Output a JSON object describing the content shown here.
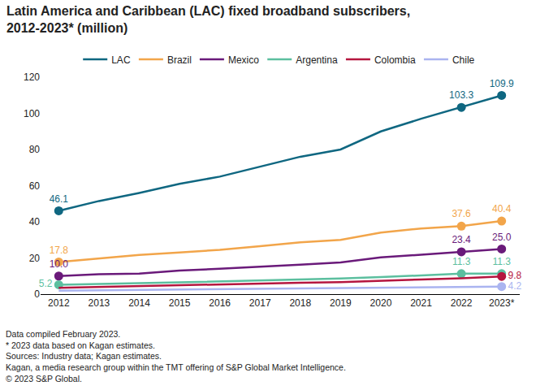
{
  "chart_data": {
    "type": "line",
    "title": "Latin America and Caribbean (LAC) fixed broadband subscribers, 2012-2023* (million)",
    "categories": [
      "2012",
      "2013",
      "2014",
      "2015",
      "2016",
      "2017",
      "2018",
      "2019",
      "2020",
      "2021",
      "2022",
      "2023*"
    ],
    "series": [
      {
        "name": "LAC",
        "color": "#0f6781",
        "values": [
          46.1,
          51.5,
          56,
          61,
          65,
          70.5,
          76,
          80,
          90,
          97,
          103.3,
          109.9
        ],
        "value_labels": [
          "46.1",
          null,
          null,
          null,
          null,
          null,
          null,
          null,
          null,
          null,
          "103.3",
          "109.9"
        ]
      },
      {
        "name": "Brazil",
        "color": "#f2a54a",
        "values": [
          17.8,
          19.8,
          21.7,
          23,
          24.5,
          26.5,
          28.6,
          30,
          34,
          36.3,
          37.6,
          40.4
        ],
        "value_labels": [
          "17.8",
          null,
          null,
          null,
          null,
          null,
          null,
          null,
          null,
          null,
          "37.6",
          "40.4"
        ]
      },
      {
        "name": "Mexico",
        "color": "#6a1a7a",
        "values": [
          10.0,
          11,
          11.4,
          13,
          14,
          15,
          16.3,
          17.5,
          20.3,
          21.8,
          23.4,
          25.0
        ],
        "value_labels": [
          "10.0",
          null,
          null,
          null,
          null,
          null,
          null,
          null,
          null,
          null,
          "23.4",
          "25.0"
        ]
      },
      {
        "name": "Argentina",
        "color": "#5cbf9f",
        "values": [
          5.2,
          5.8,
          6.1,
          6.5,
          7,
          7.5,
          8,
          8.6,
          9.4,
          10.3,
          11.3,
          11.3
        ],
        "value_labels": [
          "5.2",
          null,
          null,
          null,
          null,
          null,
          null,
          null,
          null,
          null,
          "11.3",
          "11.3"
        ]
      },
      {
        "name": "Colombia",
        "color": "#b5163f",
        "values": [
          3.5,
          4,
          4.5,
          5,
          5.5,
          5.8,
          6.3,
          6.6,
          7.2,
          8.1,
          8.8,
          9.8
        ],
        "value_labels": [
          null,
          null,
          null,
          null,
          null,
          null,
          null,
          null,
          null,
          null,
          null,
          "9.8"
        ]
      },
      {
        "name": "Chile",
        "color": "#aab4f0",
        "values": [
          1.9,
          2.1,
          2.3,
          2.5,
          2.7,
          2.9,
          3.1,
          3.3,
          3.6,
          3.9,
          4.0,
          4.2
        ],
        "value_labels": [
          null,
          null,
          null,
          null,
          null,
          null,
          null,
          null,
          null,
          null,
          null,
          "4.2"
        ]
      }
    ],
    "ylim": [
      0,
      120
    ],
    "yticks": [
      0,
      20,
      40,
      60,
      80,
      100,
      120
    ],
    "grid": false,
    "legend": "top",
    "data_labels": true,
    "annotations": [
      "Data compiled February 2023.",
      "* 2023 data based on Kagan estimates.",
      "Sources: Industry data; Kagan estimates.",
      "Kagan, a media research group within the TMT offering of S&P Global Market Intelligence.",
      "© 2023 S&P Global."
    ]
  }
}
